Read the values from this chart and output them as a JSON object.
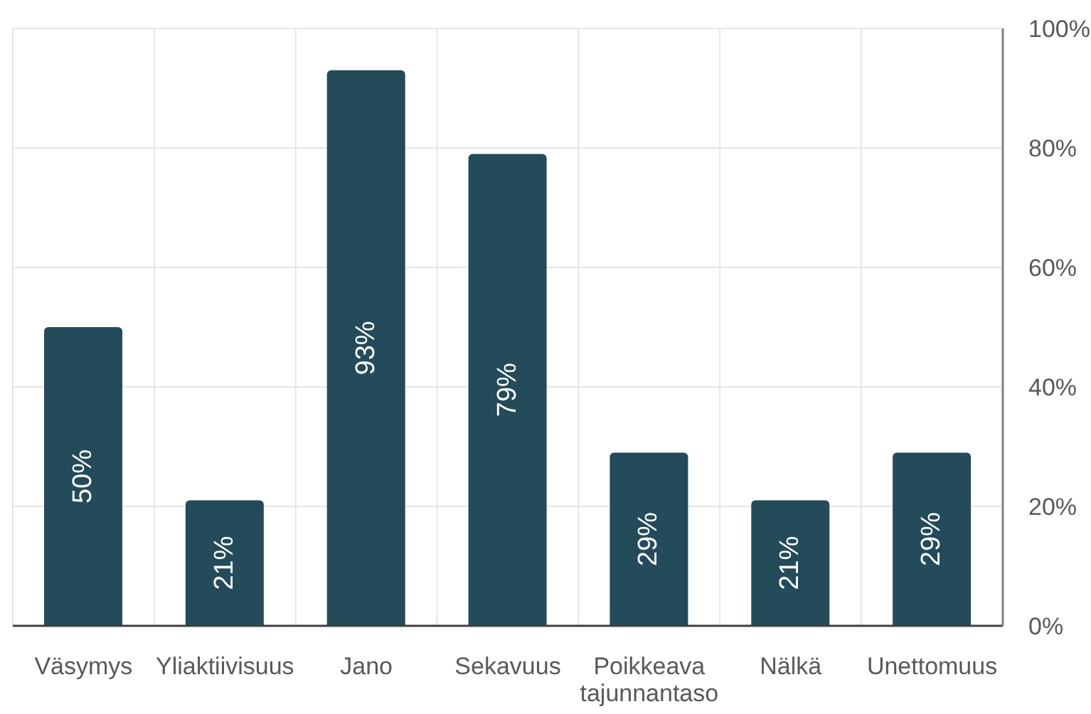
{
  "chart_data": {
    "type": "bar",
    "categories": [
      "Väsymys",
      "Yliaktiivisuus",
      "Jano",
      "Sekavuus",
      "Poikkeava tajunnantaso",
      "Nälkä",
      "Unettomuus"
    ],
    "values": [
      50,
      21,
      93,
      79,
      29,
      21,
      29
    ],
    "color": "#234b5a",
    "value_labels": [
      "50%",
      "21%",
      "93%",
      "79%",
      "29%",
      "21%",
      "29%"
    ],
    "ylim": [
      0,
      100
    ],
    "yticks": [
      {
        "value": 0,
        "label": "0%"
      },
      {
        "value": 20,
        "label": "20%"
      },
      {
        "value": 40,
        "label": "40%"
      },
      {
        "value": 60,
        "label": "60%"
      },
      {
        "value": 80,
        "label": "80%"
      },
      {
        "value": 100,
        "label": "100%"
      }
    ],
    "grid": true
  }
}
